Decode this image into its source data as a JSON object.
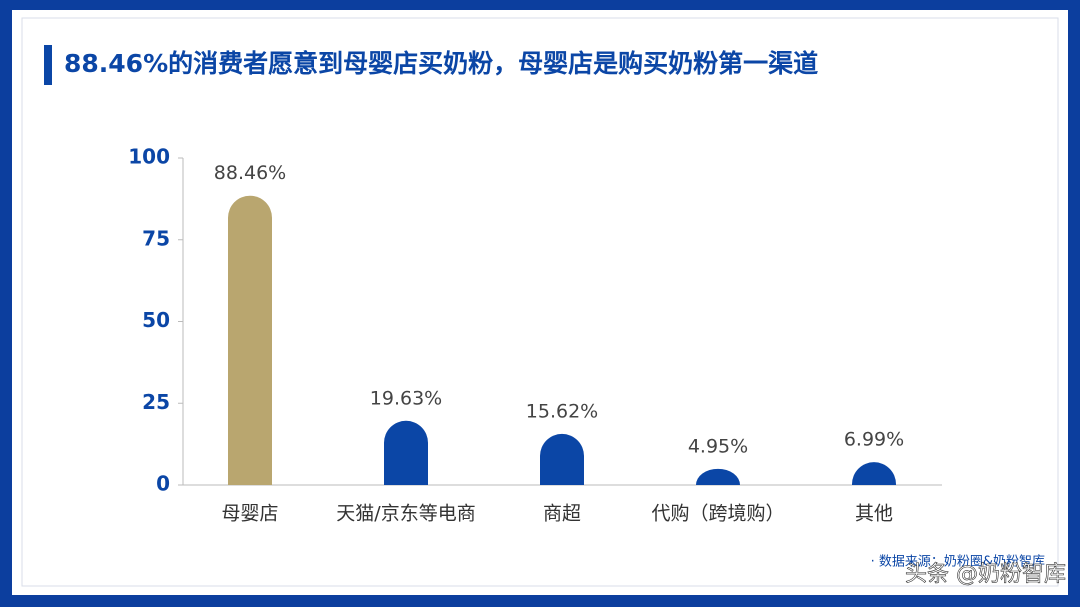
{
  "chart_data": {
    "type": "bar",
    "title": "88.46%的消费者愿意到母婴店买奶粉，母婴店是购买奶粉第一渠道",
    "categories": [
      "母婴店",
      "天猫/京东等电商",
      "商超",
      "代购（跨境购）",
      "其他"
    ],
    "values": [
      88.46,
      19.63,
      15.62,
      4.95,
      6.99
    ],
    "value_labels": [
      "88.46%",
      "19.63%",
      "15.62%",
      "4.95%",
      "6.99%"
    ],
    "colors": [
      "#b9a66f",
      "#0b46a6",
      "#0b46a6",
      "#0b46a6",
      "#0b46a6"
    ],
    "ylim": [
      0,
      100
    ],
    "yticks": [
      0,
      25,
      50,
      75,
      100
    ],
    "grid": false,
    "source": "· 数据来源：奶粉圈&奶粉智库",
    "watermark": "头条 @奶粉智库"
  }
}
